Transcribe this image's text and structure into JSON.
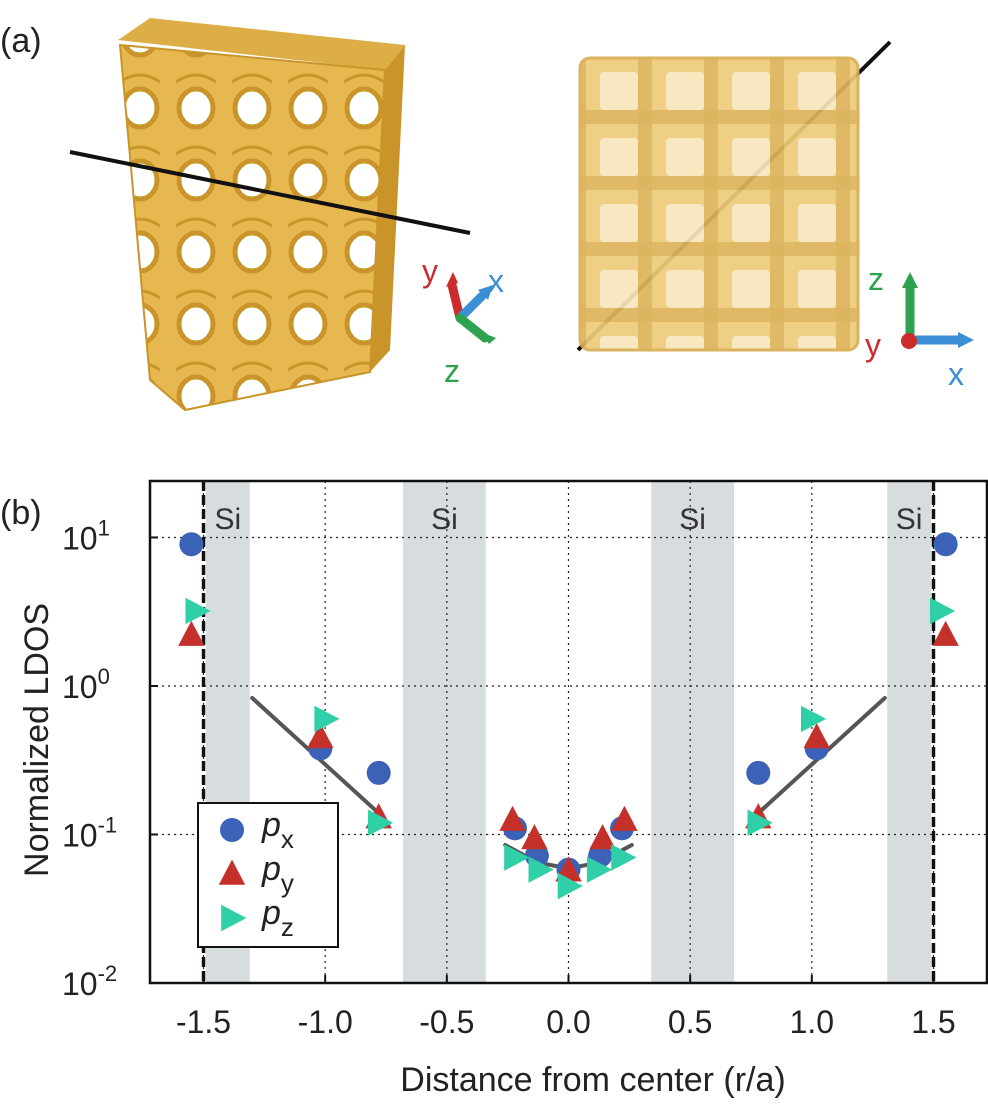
{
  "panel_a": {
    "label": "(a)",
    "left_axes": {
      "y": "y",
      "x": "x",
      "z": "z"
    },
    "right_axes": {
      "z": "z",
      "y": "y",
      "x": "x"
    },
    "colors": {
      "structure": "#e6b84f",
      "structure_dark": "#c9952a",
      "axis_x": "#3a8fd6",
      "axis_y": "#cc2b2b",
      "axis_z": "#2ea24f"
    }
  },
  "panel_b": {
    "label": "(b)"
  },
  "chart_data": {
    "type": "scatter",
    "yscale": "log",
    "xlabel": "Distance from center (r/a)",
    "ylabel": "Normalized LDOS",
    "xlim": [
      -1.72,
      1.72
    ],
    "ylim": [
      0.01,
      24
    ],
    "xticks": [
      -1.5,
      -1.0,
      -0.5,
      0.0,
      0.5,
      1.0,
      1.5
    ],
    "xtick_labels": [
      "-1.5",
      "-1.0",
      "-0.5",
      "0.0",
      "0.5",
      "1.0",
      "1.5"
    ],
    "yticks": [
      {
        "value": 10,
        "base": "10",
        "exp": "1"
      },
      {
        "value": 1,
        "base": "10",
        "exp": "0"
      },
      {
        "value": 0.1,
        "base": "10",
        "exp": "-1"
      },
      {
        "value": 0.01,
        "base": "10",
        "exp": "-2"
      }
    ],
    "grid": true,
    "si_regions": [
      {
        "x0": -1.49,
        "x1": -1.31,
        "label": "Si"
      },
      {
        "x0": -0.68,
        "x1": -0.34,
        "label": "Si"
      },
      {
        "x0": 0.34,
        "x1": 0.68,
        "label": "Si"
      },
      {
        "x0": 1.31,
        "x1": 1.49,
        "label": "Si"
      }
    ],
    "boundary_lines": [
      -1.5,
      1.5
    ],
    "series": [
      {
        "name": "p",
        "sub": "x",
        "marker": "circle",
        "color": "#3c62b8",
        "points": [
          [
            -1.55,
            9.0
          ],
          [
            -1.02,
            0.38
          ],
          [
            -0.78,
            0.26
          ],
          [
            -0.22,
            0.11
          ],
          [
            -0.13,
            0.072
          ],
          [
            0.0,
            0.058
          ],
          [
            0.13,
            0.072
          ],
          [
            0.22,
            0.11
          ],
          [
            0.78,
            0.26
          ],
          [
            1.02,
            0.38
          ],
          [
            1.55,
            9.0
          ]
        ]
      },
      {
        "name": "p",
        "sub": "y",
        "marker": "triangle-up",
        "color": "#c4312b",
        "points": [
          [
            -1.55,
            2.2
          ],
          [
            -1.02,
            0.45
          ],
          [
            -0.78,
            0.13
          ],
          [
            -0.23,
            0.125
          ],
          [
            -0.14,
            0.094
          ],
          [
            0.0,
            0.057
          ],
          [
            0.14,
            0.094
          ],
          [
            0.23,
            0.125
          ],
          [
            0.78,
            0.13
          ],
          [
            1.02,
            0.45
          ],
          [
            1.55,
            2.2
          ]
        ]
      },
      {
        "name": "p",
        "sub": "z",
        "marker": "triangle-right",
        "color": "#2fcfa8",
        "points": [
          [
            -1.53,
            3.2
          ],
          [
            -1.0,
            0.6
          ],
          [
            -0.78,
            0.12
          ],
          [
            -0.22,
            0.07
          ],
          [
            -0.12,
            0.058
          ],
          [
            0.0,
            0.045
          ],
          [
            0.12,
            0.058
          ],
          [
            0.22,
            0.07
          ],
          [
            0.78,
            0.12
          ],
          [
            1.0,
            0.6
          ],
          [
            1.53,
            3.2
          ]
        ]
      }
    ],
    "fit_lines": [
      {
        "x": [
          -1.3,
          -0.76
        ],
        "y": [
          0.83,
          0.13
        ]
      },
      {
        "x": [
          0.76,
          1.3
        ],
        "y": [
          0.13,
          0.83
        ]
      },
      {
        "x": [
          -0.26,
          -0.13,
          0.0,
          0.13,
          0.26
        ],
        "y": [
          0.085,
          0.065,
          0.059,
          0.065,
          0.085
        ]
      }
    ],
    "legend": {
      "location": "lower-left"
    }
  }
}
